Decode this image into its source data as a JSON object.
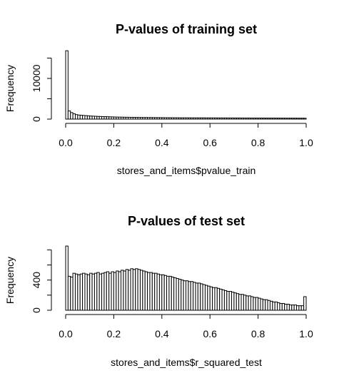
{
  "chart_data": [
    {
      "type": "bar",
      "title": "P-values of training set",
      "xlabel": "stores_and_items$pvalue_train",
      "ylabel": "Frequency",
      "xlim": [
        0,
        1
      ],
      "ylim": [
        0,
        17000
      ],
      "x_ticks": [
        0.0,
        0.2,
        0.4,
        0.6,
        0.8,
        1.0
      ],
      "x_tick_labels": [
        "0.0",
        "0.2",
        "0.4",
        "0.6",
        "0.8",
        "1.0"
      ],
      "y_ticks": [
        0,
        5000,
        10000,
        15000
      ],
      "y_tick_labels": [
        "0",
        "",
        "10000",
        ""
      ],
      "bin_width": 0.01,
      "values": [
        16800,
        2000,
        1600,
        1300,
        1100,
        1000,
        950,
        900,
        850,
        800,
        760,
        720,
        690,
        660,
        640,
        620,
        600,
        580,
        560,
        540,
        520,
        500,
        490,
        480,
        470,
        460,
        450,
        440,
        430,
        420,
        410,
        405,
        400,
        395,
        390,
        385,
        380,
        375,
        370,
        365,
        360,
        355,
        350,
        345,
        340,
        335,
        330,
        325,
        320,
        318,
        316,
        314,
        312,
        310,
        308,
        306,
        304,
        302,
        300,
        298,
        296,
        294,
        292,
        290,
        288,
        286,
        284,
        282,
        280,
        278,
        276,
        274,
        272,
        270,
        268,
        266,
        264,
        262,
        260,
        258,
        256,
        254,
        252,
        250,
        248,
        246,
        244,
        242,
        240,
        238,
        236,
        234,
        232,
        230,
        228,
        226,
        224,
        222,
        220,
        218
      ]
    },
    {
      "type": "bar",
      "title": "P-values of test set",
      "xlabel": "stores_and_items$r_squared_test",
      "ylabel": "Frequency",
      "xlim": [
        0,
        1
      ],
      "ylim": [
        0,
        850
      ],
      "x_ticks": [
        0.0,
        0.2,
        0.4,
        0.6,
        0.8,
        1.0
      ],
      "x_tick_labels": [
        "0.0",
        "0.2",
        "0.4",
        "0.6",
        "0.8",
        "1.0"
      ],
      "y_ticks": [
        0,
        200,
        400,
        600,
        800
      ],
      "y_tick_labels": [
        "0",
        "",
        "400",
        "",
        ""
      ],
      "bin_width": 0.01,
      "values": [
        850,
        450,
        440,
        490,
        480,
        470,
        480,
        490,
        480,
        470,
        490,
        480,
        490,
        500,
        480,
        490,
        500,
        510,
        490,
        510,
        500,
        520,
        510,
        530,
        520,
        540,
        530,
        550,
        540,
        550,
        540,
        530,
        520,
        510,
        500,
        500,
        490,
        490,
        480,
        470,
        470,
        460,
        450,
        450,
        440,
        430,
        420,
        410,
        400,
        390,
        390,
        380,
        380,
        370,
        360,
        360,
        350,
        340,
        330,
        320,
        310,
        300,
        300,
        290,
        280,
        270,
        260,
        250,
        250,
        240,
        230,
        220,
        210,
        210,
        200,
        190,
        190,
        180,
        170,
        170,
        160,
        150,
        140,
        140,
        130,
        120,
        110,
        110,
        100,
        90,
        90,
        80,
        80,
        70,
        70,
        70,
        60,
        60,
        60,
        180
      ]
    }
  ]
}
